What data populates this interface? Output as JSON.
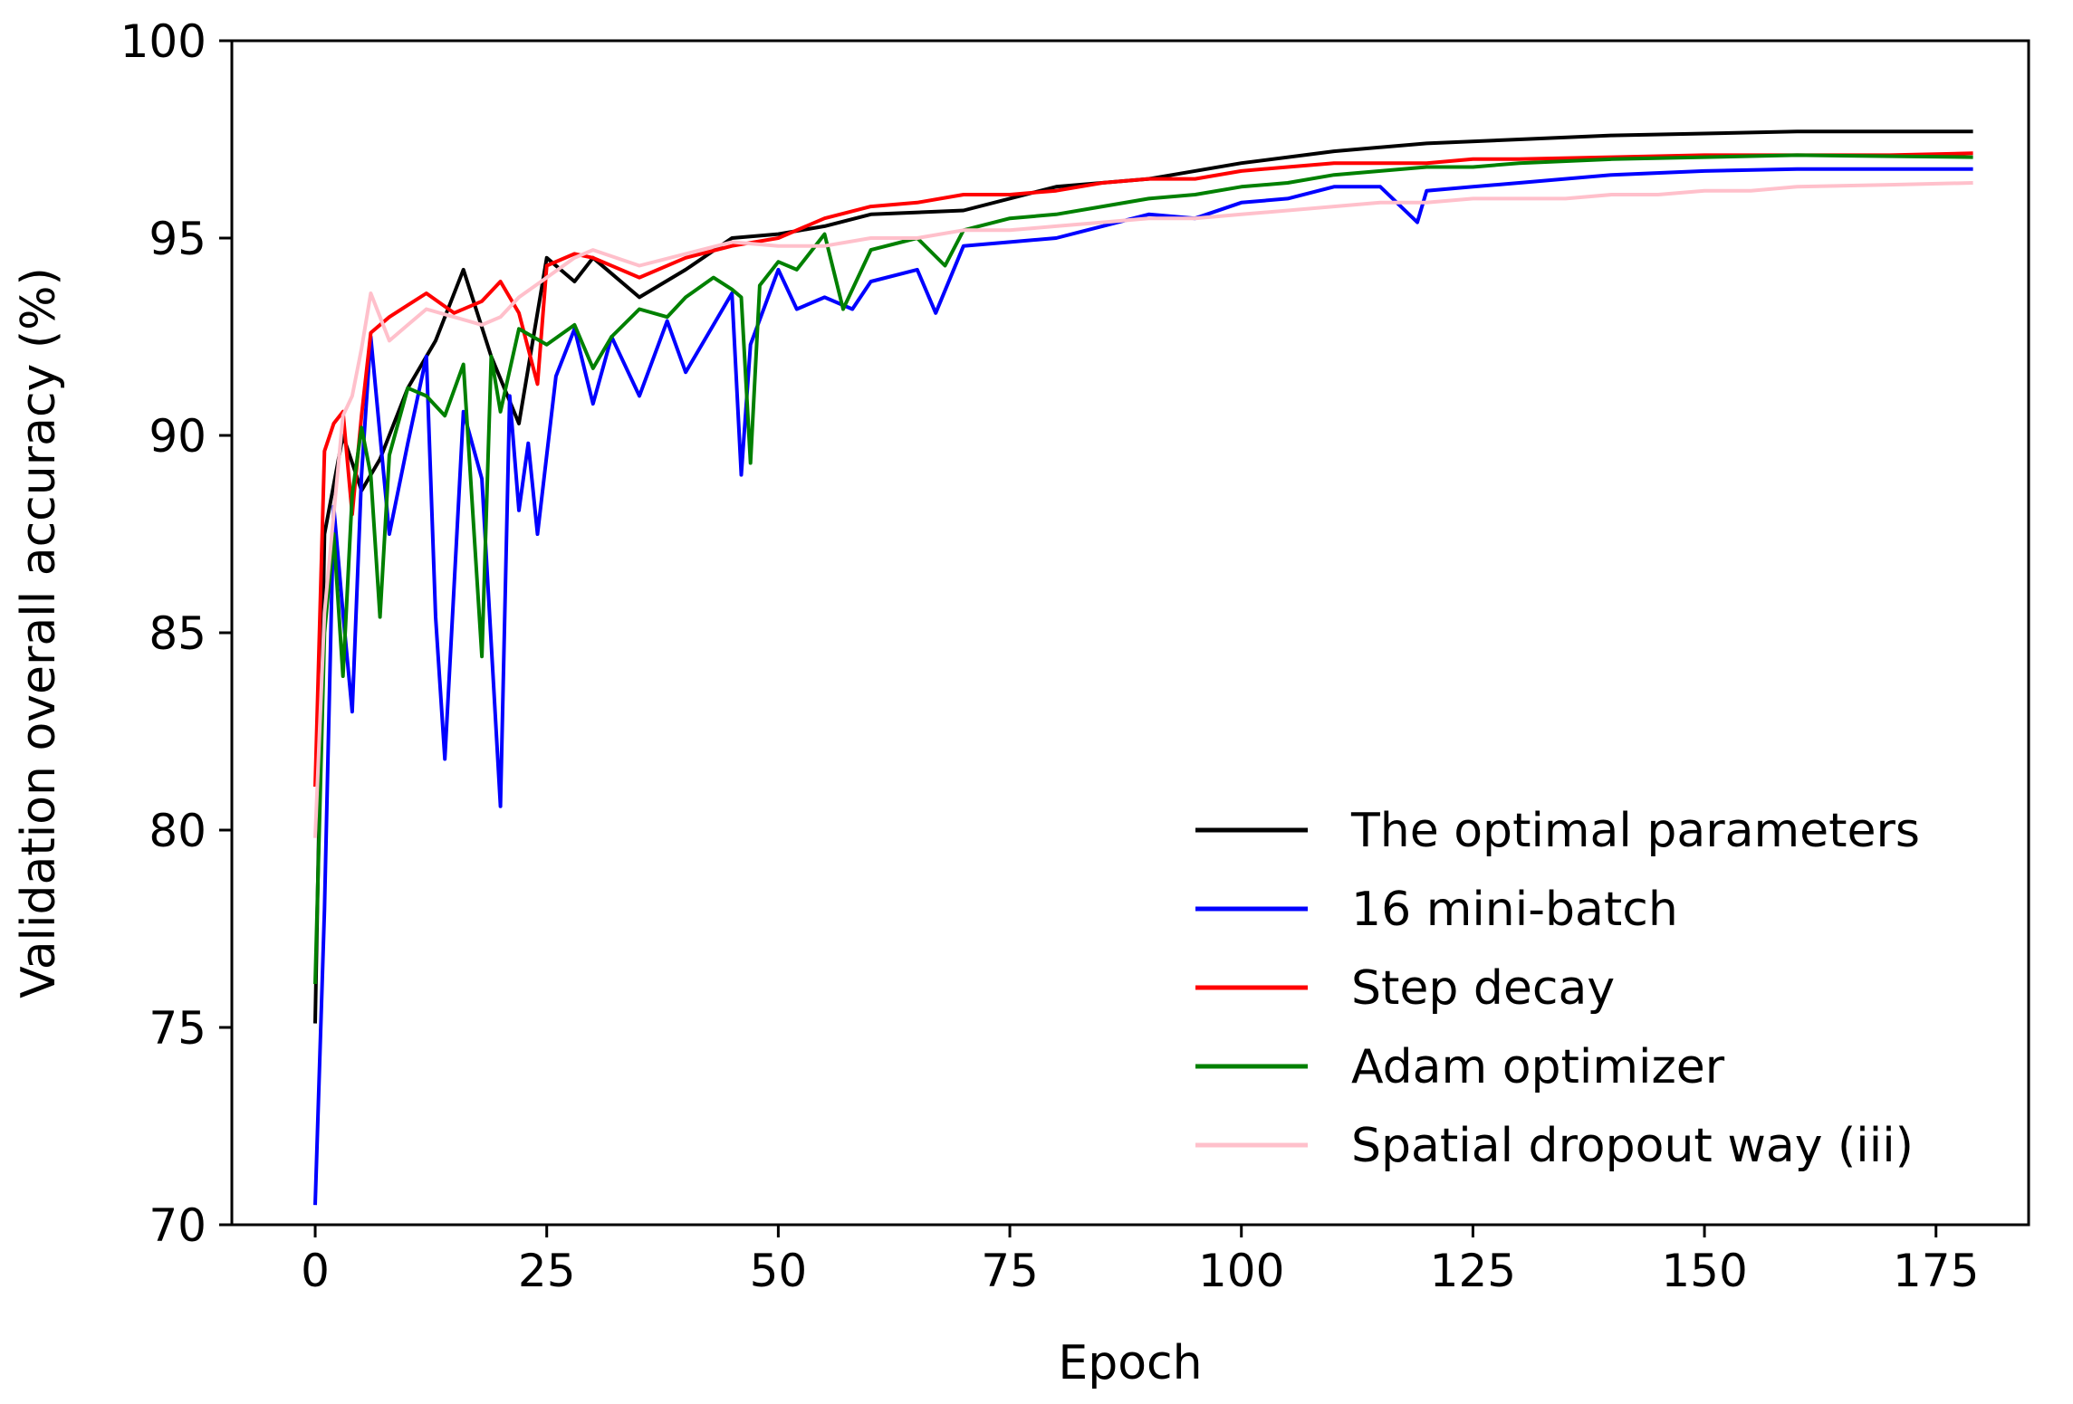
{
  "chart_data": {
    "type": "line",
    "title": "",
    "xlabel": "Epoch",
    "ylabel": "Validation overall accuracy (%)",
    "xlim": [
      -9,
      185
    ],
    "ylim": [
      70,
      100
    ],
    "xticks": [
      0,
      25,
      50,
      75,
      100,
      125,
      150,
      175
    ],
    "yticks": [
      70,
      75,
      80,
      85,
      90,
      95,
      100
    ],
    "legend_position": "lower-right",
    "series": [
      {
        "name": "The optimal parameters",
        "color": "#000000",
        "points": [
          [
            0,
            75.1
          ],
          [
            1,
            87.5
          ],
          [
            3,
            90.0
          ],
          [
            5,
            88.6
          ],
          [
            7,
            89.4
          ],
          [
            10,
            91.2
          ],
          [
            13,
            92.4
          ],
          [
            16,
            94.2
          ],
          [
            19,
            92.0
          ],
          [
            22,
            90.3
          ],
          [
            25,
            94.5
          ],
          [
            28,
            93.9
          ],
          [
            30,
            94.5
          ],
          [
            35,
            93.5
          ],
          [
            40,
            94.2
          ],
          [
            45,
            95.0
          ],
          [
            50,
            95.1
          ],
          [
            55,
            95.3
          ],
          [
            60,
            95.6
          ],
          [
            70,
            95.7
          ],
          [
            80,
            96.3
          ],
          [
            90,
            96.5
          ],
          [
            100,
            96.9
          ],
          [
            110,
            97.2
          ],
          [
            120,
            97.4
          ],
          [
            130,
            97.5
          ],
          [
            140,
            97.6
          ],
          [
            150,
            97.65
          ],
          [
            160,
            97.7
          ],
          [
            179,
            97.7
          ]
        ]
      },
      {
        "name": "16 mini-batch",
        "color": "#0000ff",
        "points": [
          [
            0,
            70.5
          ],
          [
            1,
            78.0
          ],
          [
            2,
            88.2
          ],
          [
            3,
            85.5
          ],
          [
            4,
            83.0
          ],
          [
            5,
            89.0
          ],
          [
            6,
            92.5
          ],
          [
            8,
            87.5
          ],
          [
            10,
            89.8
          ],
          [
            12,
            92.0
          ],
          [
            13,
            85.4
          ],
          [
            14,
            81.8
          ],
          [
            16,
            90.6
          ],
          [
            18,
            88.9
          ],
          [
            20,
            80.6
          ],
          [
            21,
            91.0
          ],
          [
            22,
            88.1
          ],
          [
            23,
            89.8
          ],
          [
            24,
            87.5
          ],
          [
            26,
            91.5
          ],
          [
            28,
            92.7
          ],
          [
            30,
            90.8
          ],
          [
            32,
            92.5
          ],
          [
            35,
            91.0
          ],
          [
            38,
            92.9
          ],
          [
            40,
            91.6
          ],
          [
            43,
            92.8
          ],
          [
            45,
            93.6
          ],
          [
            46,
            89.0
          ],
          [
            47,
            92.3
          ],
          [
            50,
            94.2
          ],
          [
            52,
            93.2
          ],
          [
            55,
            93.5
          ],
          [
            58,
            93.2
          ],
          [
            60,
            93.9
          ],
          [
            65,
            94.2
          ],
          [
            67,
            93.1
          ],
          [
            70,
            94.8
          ],
          [
            75,
            94.9
          ],
          [
            80,
            95.0
          ],
          [
            85,
            95.3
          ],
          [
            90,
            95.6
          ],
          [
            95,
            95.5
          ],
          [
            100,
            95.9
          ],
          [
            105,
            96.0
          ],
          [
            110,
            96.3
          ],
          [
            115,
            96.3
          ],
          [
            119,
            95.4
          ],
          [
            120,
            96.2
          ],
          [
            125,
            96.3
          ],
          [
            130,
            96.4
          ],
          [
            140,
            96.6
          ],
          [
            150,
            96.7
          ],
          [
            160,
            96.75
          ],
          [
            179,
            96.75
          ]
        ]
      },
      {
        "name": "Step decay",
        "color": "#ff0000",
        "points": [
          [
            0,
            81.1
          ],
          [
            1,
            89.6
          ],
          [
            2,
            90.3
          ],
          [
            3,
            90.6
          ],
          [
            4,
            88.0
          ],
          [
            5,
            90.5
          ],
          [
            6,
            92.6
          ],
          [
            8,
            93.0
          ],
          [
            10,
            93.3
          ],
          [
            12,
            93.6
          ],
          [
            15,
            93.1
          ],
          [
            18,
            93.4
          ],
          [
            20,
            93.9
          ],
          [
            22,
            93.1
          ],
          [
            24,
            91.3
          ],
          [
            25,
            94.3
          ],
          [
            28,
            94.6
          ],
          [
            30,
            94.5
          ],
          [
            35,
            94.0
          ],
          [
            40,
            94.5
          ],
          [
            45,
            94.8
          ],
          [
            50,
            95.0
          ],
          [
            55,
            95.5
          ],
          [
            60,
            95.8
          ],
          [
            65,
            95.9
          ],
          [
            70,
            96.1
          ],
          [
            75,
            96.1
          ],
          [
            80,
            96.2
          ],
          [
            85,
            96.4
          ],
          [
            90,
            96.5
          ],
          [
            95,
            96.5
          ],
          [
            100,
            96.7
          ],
          [
            105,
            96.8
          ],
          [
            110,
            96.9
          ],
          [
            115,
            96.9
          ],
          [
            120,
            96.9
          ],
          [
            125,
            97.0
          ],
          [
            130,
            97.0
          ],
          [
            140,
            97.05
          ],
          [
            150,
            97.1
          ],
          [
            160,
            97.1
          ],
          [
            170,
            97.1
          ],
          [
            179,
            97.15
          ]
        ]
      },
      {
        "name": "Adam optimizer",
        "color": "#008000",
        "points": [
          [
            0,
            76.1
          ],
          [
            1,
            85.0
          ],
          [
            2,
            87.5
          ],
          [
            3,
            83.9
          ],
          [
            4,
            88.5
          ],
          [
            5,
            90.2
          ],
          [
            6,
            89.0
          ],
          [
            7,
            85.4
          ],
          [
            8,
            89.5
          ],
          [
            10,
            91.2
          ],
          [
            12,
            91.0
          ],
          [
            14,
            90.5
          ],
          [
            16,
            91.8
          ],
          [
            18,
            84.4
          ],
          [
            19,
            92.0
          ],
          [
            20,
            90.6
          ],
          [
            22,
            92.7
          ],
          [
            25,
            92.3
          ],
          [
            28,
            92.8
          ],
          [
            30,
            91.7
          ],
          [
            32,
            92.5
          ],
          [
            35,
            93.2
          ],
          [
            38,
            93.0
          ],
          [
            40,
            93.5
          ],
          [
            43,
            94.0
          ],
          [
            45,
            93.7
          ],
          [
            46,
            93.5
          ],
          [
            47,
            89.3
          ],
          [
            48,
            93.8
          ],
          [
            50,
            94.4
          ],
          [
            52,
            94.2
          ],
          [
            55,
            95.1
          ],
          [
            57,
            93.2
          ],
          [
            60,
            94.7
          ],
          [
            65,
            95.0
          ],
          [
            68,
            94.3
          ],
          [
            70,
            95.2
          ],
          [
            75,
            95.5
          ],
          [
            80,
            95.6
          ],
          [
            85,
            95.8
          ],
          [
            90,
            96.0
          ],
          [
            95,
            96.1
          ],
          [
            100,
            96.3
          ],
          [
            105,
            96.4
          ],
          [
            110,
            96.6
          ],
          [
            115,
            96.7
          ],
          [
            120,
            96.8
          ],
          [
            125,
            96.8
          ],
          [
            130,
            96.9
          ],
          [
            140,
            97.0
          ],
          [
            150,
            97.05
          ],
          [
            160,
            97.1
          ],
          [
            179,
            97.05
          ]
        ]
      },
      {
        "name": "Spatial dropout way (iii)",
        "color": "#ffc0cb",
        "points": [
          [
            0,
            79.8
          ],
          [
            1,
            85.5
          ],
          [
            2,
            88.0
          ],
          [
            3,
            90.5
          ],
          [
            4,
            91.0
          ],
          [
            5,
            92.2
          ],
          [
            6,
            93.6
          ],
          [
            8,
            92.4
          ],
          [
            10,
            92.8
          ],
          [
            12,
            93.2
          ],
          [
            15,
            93.0
          ],
          [
            18,
            92.8
          ],
          [
            20,
            93.0
          ],
          [
            22,
            93.5
          ],
          [
            25,
            94.0
          ],
          [
            28,
            94.5
          ],
          [
            30,
            94.7
          ],
          [
            35,
            94.3
          ],
          [
            40,
            94.6
          ],
          [
            45,
            94.9
          ],
          [
            50,
            94.8
          ],
          [
            55,
            94.8
          ],
          [
            60,
            95.0
          ],
          [
            65,
            95.0
          ],
          [
            70,
            95.2
          ],
          [
            75,
            95.2
          ],
          [
            80,
            95.3
          ],
          [
            85,
            95.4
          ],
          [
            90,
            95.5
          ],
          [
            95,
            95.5
          ],
          [
            100,
            95.6
          ],
          [
            105,
            95.7
          ],
          [
            110,
            95.8
          ],
          [
            115,
            95.9
          ],
          [
            120,
            95.9
          ],
          [
            125,
            96.0
          ],
          [
            130,
            96.0
          ],
          [
            135,
            96.0
          ],
          [
            140,
            96.1
          ],
          [
            145,
            96.1
          ],
          [
            150,
            96.2
          ],
          [
            155,
            96.2
          ],
          [
            160,
            96.3
          ],
          [
            170,
            96.35
          ],
          [
            179,
            96.4
          ]
        ]
      }
    ]
  }
}
